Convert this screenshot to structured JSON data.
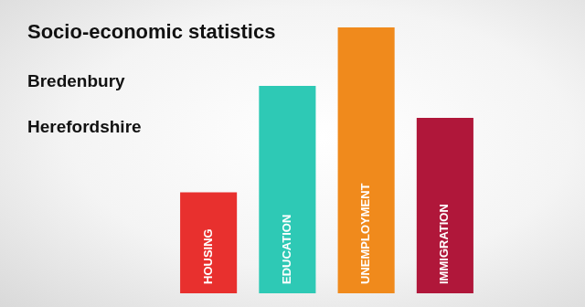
{
  "chart_data": {
    "type": "bar",
    "title": "Socio-economic statistics",
    "subtitle": [
      "Bredenbury",
      "Herefordshire"
    ],
    "categories": [
      "HOUSING",
      "EDUCATION",
      "UNEMPLOYMENT",
      "IMMIGRATION"
    ],
    "values": [
      38,
      78,
      100,
      66
    ],
    "colors": [
      "#e8302e",
      "#2ec9b5",
      "#f08a1c",
      "#b0173a"
    ],
    "ylim": [
      0,
      100
    ],
    "grid": false,
    "tick_labels": "x"
  }
}
